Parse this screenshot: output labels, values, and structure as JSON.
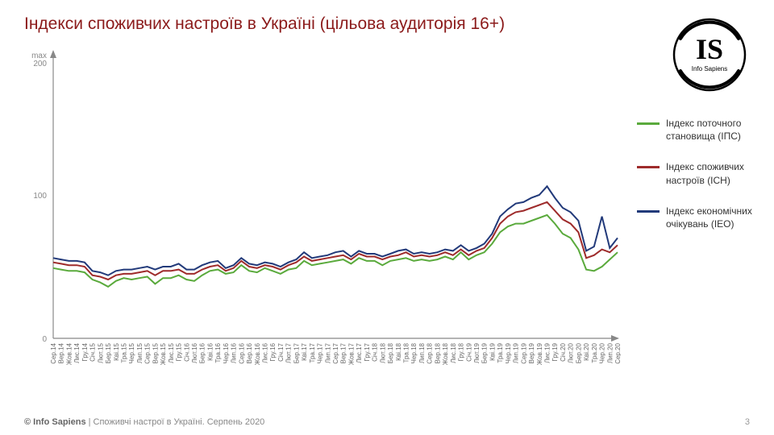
{
  "title": "Індекси споживчих настроїв в Україні (цільова аудиторія 16+)",
  "title_color": "#8b1a1a",
  "logo": {
    "text": "IS",
    "sub": "Info Sapiens"
  },
  "footer": {
    "brand": "© Info Sapiens",
    "rest": " | Споживчі настрої в Україні. Серпень 2020"
  },
  "page_number": "3",
  "chart": {
    "type": "line",
    "background_color": "#ffffff",
    "ymax_label_top": "max",
    "ymax_label_val": "200",
    "ylim": [
      0,
      200
    ],
    "yticks": [
      0,
      100
    ],
    "axis_color": "#888888",
    "xlabels": [
      "Сер.14",
      "Вер.14",
      "Жов.14",
      "Лис.14",
      "Гру.14",
      "Січ.15",
      "Лют.15",
      "Бер.15",
      "Кві.15",
      "Тра.15",
      "Чер.15",
      "Лип.15",
      "Сер.15",
      "Вер.15",
      "Жов.15",
      "Лис.15",
      "Гру.15",
      "Січ.16",
      "Лют.16",
      "Бер.16",
      "Кві.16",
      "Тра.16",
      "Чер.16",
      "Лип.16",
      "Сер.16",
      "Вер.16",
      "Жов.16",
      "Лис.16",
      "Гру.16",
      "Січ.17",
      "Лют.17",
      "Бер.17",
      "Кві.17",
      "Тра.17",
      "Чер.17",
      "Лип.17",
      "Сер.17",
      "Вер.17",
      "Жов.17",
      "Лис.17",
      "Гру.17",
      "Січ.18",
      "Лют.18",
      "Бер.18",
      "Кві.18",
      "Тра.18",
      "Чер.18",
      "Лип.18",
      "Сер.18",
      "Вер.18",
      "Жов.18",
      "Лис.18",
      "Гру.18",
      "Січ.19",
      "Лют.19",
      "Бер.19",
      "Кві.19",
      "Тра.19",
      "Чер.19",
      "Лип.19",
      "Сер.19",
      "Вер.19",
      "Жов.19",
      "Лис.19",
      "Гру.19",
      "Січ.20",
      "Лют.20",
      "Бер.20",
      "Кві.20",
      "Тра.20",
      "Чер.20",
      "Лип.20",
      "Сер.20"
    ],
    "series": [
      {
        "name": "Індекс поточного становища (ІПС)",
        "legend": "Індекс поточного становища (ІПС)",
        "color": "#5aaa3c",
        "data": [
          49,
          48,
          47,
          47,
          46,
          41,
          39,
          36,
          40,
          42,
          41,
          42,
          43,
          38,
          42,
          42,
          44,
          41,
          40,
          44,
          47,
          48,
          45,
          46,
          51,
          47,
          46,
          49,
          47,
          45,
          48,
          49,
          54,
          51,
          52,
          53,
          54,
          55,
          52,
          56,
          54,
          54,
          51,
          54,
          55,
          56,
          54,
          55,
          54,
          55,
          57,
          55,
          60,
          55,
          58,
          60,
          66,
          74,
          78,
          80,
          80,
          82,
          84,
          86,
          80,
          73,
          70,
          62,
          48,
          47,
          50,
          55,
          60
        ]
      },
      {
        "name": "Індекс споживчих настроїв (ІСН)",
        "legend": "Індекс споживчих настроїв (ІСН)",
        "color": "#9e2b2b",
        "data": [
          53,
          52,
          51,
          51,
          50,
          44,
          43,
          41,
          44,
          45,
          45,
          46,
          47,
          44,
          47,
          47,
          48,
          45,
          45,
          48,
          50,
          51,
          47,
          49,
          54,
          50,
          49,
          51,
          50,
          48,
          51,
          53,
          57,
          54,
          55,
          56,
          57,
          58,
          55,
          59,
          57,
          57,
          55,
          57,
          58,
          60,
          57,
          58,
          57,
          58,
          60,
          58,
          62,
          58,
          61,
          63,
          70,
          80,
          85,
          88,
          89,
          91,
          93,
          95,
          89,
          83,
          80,
          74,
          56,
          58,
          62,
          60,
          65
        ]
      },
      {
        "name": "Індекс економічних очікувань (ІЕО)",
        "legend": "Індекс економічних очікувань (ІЕО)",
        "color": "#223a7a",
        "data": [
          56,
          55,
          54,
          54,
          53,
          47,
          46,
          44,
          47,
          48,
          48,
          49,
          50,
          48,
          50,
          50,
          52,
          48,
          48,
          51,
          53,
          54,
          49,
          51,
          56,
          52,
          51,
          53,
          52,
          50,
          53,
          55,
          60,
          56,
          57,
          58,
          60,
          61,
          57,
          61,
          59,
          59,
          57,
          59,
          61,
          62,
          59,
          60,
          59,
          60,
          62,
          61,
          65,
          61,
          63,
          66,
          73,
          85,
          90,
          94,
          95,
          98,
          100,
          106,
          98,
          91,
          88,
          82,
          61,
          64,
          85,
          63,
          70
        ]
      }
    ],
    "line_width": 2
  }
}
